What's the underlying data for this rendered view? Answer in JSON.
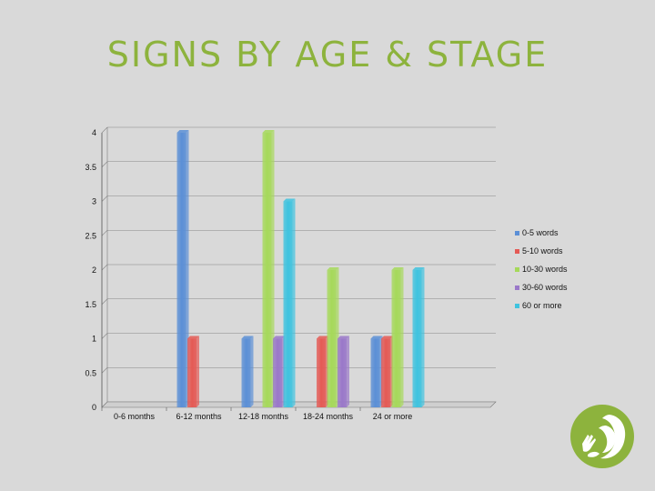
{
  "title": "SIGNS BY AGE & STAGE",
  "chart_data": {
    "type": "bar",
    "categories": [
      "0-6 months",
      "6-12 months",
      "12-18 months",
      "18-24 months",
      "24 or more"
    ],
    "series": [
      {
        "name": "0-5 words",
        "values": [
          0,
          4,
          1,
          0,
          1
        ],
        "color": "#5b8fd6"
      },
      {
        "name": "5-10 words",
        "values": [
          0,
          1,
          0,
          1,
          1
        ],
        "color": "#e45a55"
      },
      {
        "name": "10-30 words",
        "values": [
          0,
          0,
          4,
          2,
          2
        ],
        "color": "#a6d95a"
      },
      {
        "name": "30-60 words",
        "values": [
          0,
          0,
          1,
          1,
          0
        ],
        "color": "#9a78c9"
      },
      {
        "name": "60 or more",
        "values": [
          0,
          0,
          3,
          0,
          2
        ],
        "color": "#3fc3df"
      }
    ],
    "ylim": [
      0,
      4
    ],
    "yticks": [
      "0",
      "0.5",
      "1",
      "1.5",
      "2",
      "2.5",
      "3",
      "3.5",
      "4"
    ],
    "grid": true,
    "legend": "right"
  },
  "logo": {
    "icon": "parent-child-hands-logo-icon",
    "color": "#8db33d"
  }
}
